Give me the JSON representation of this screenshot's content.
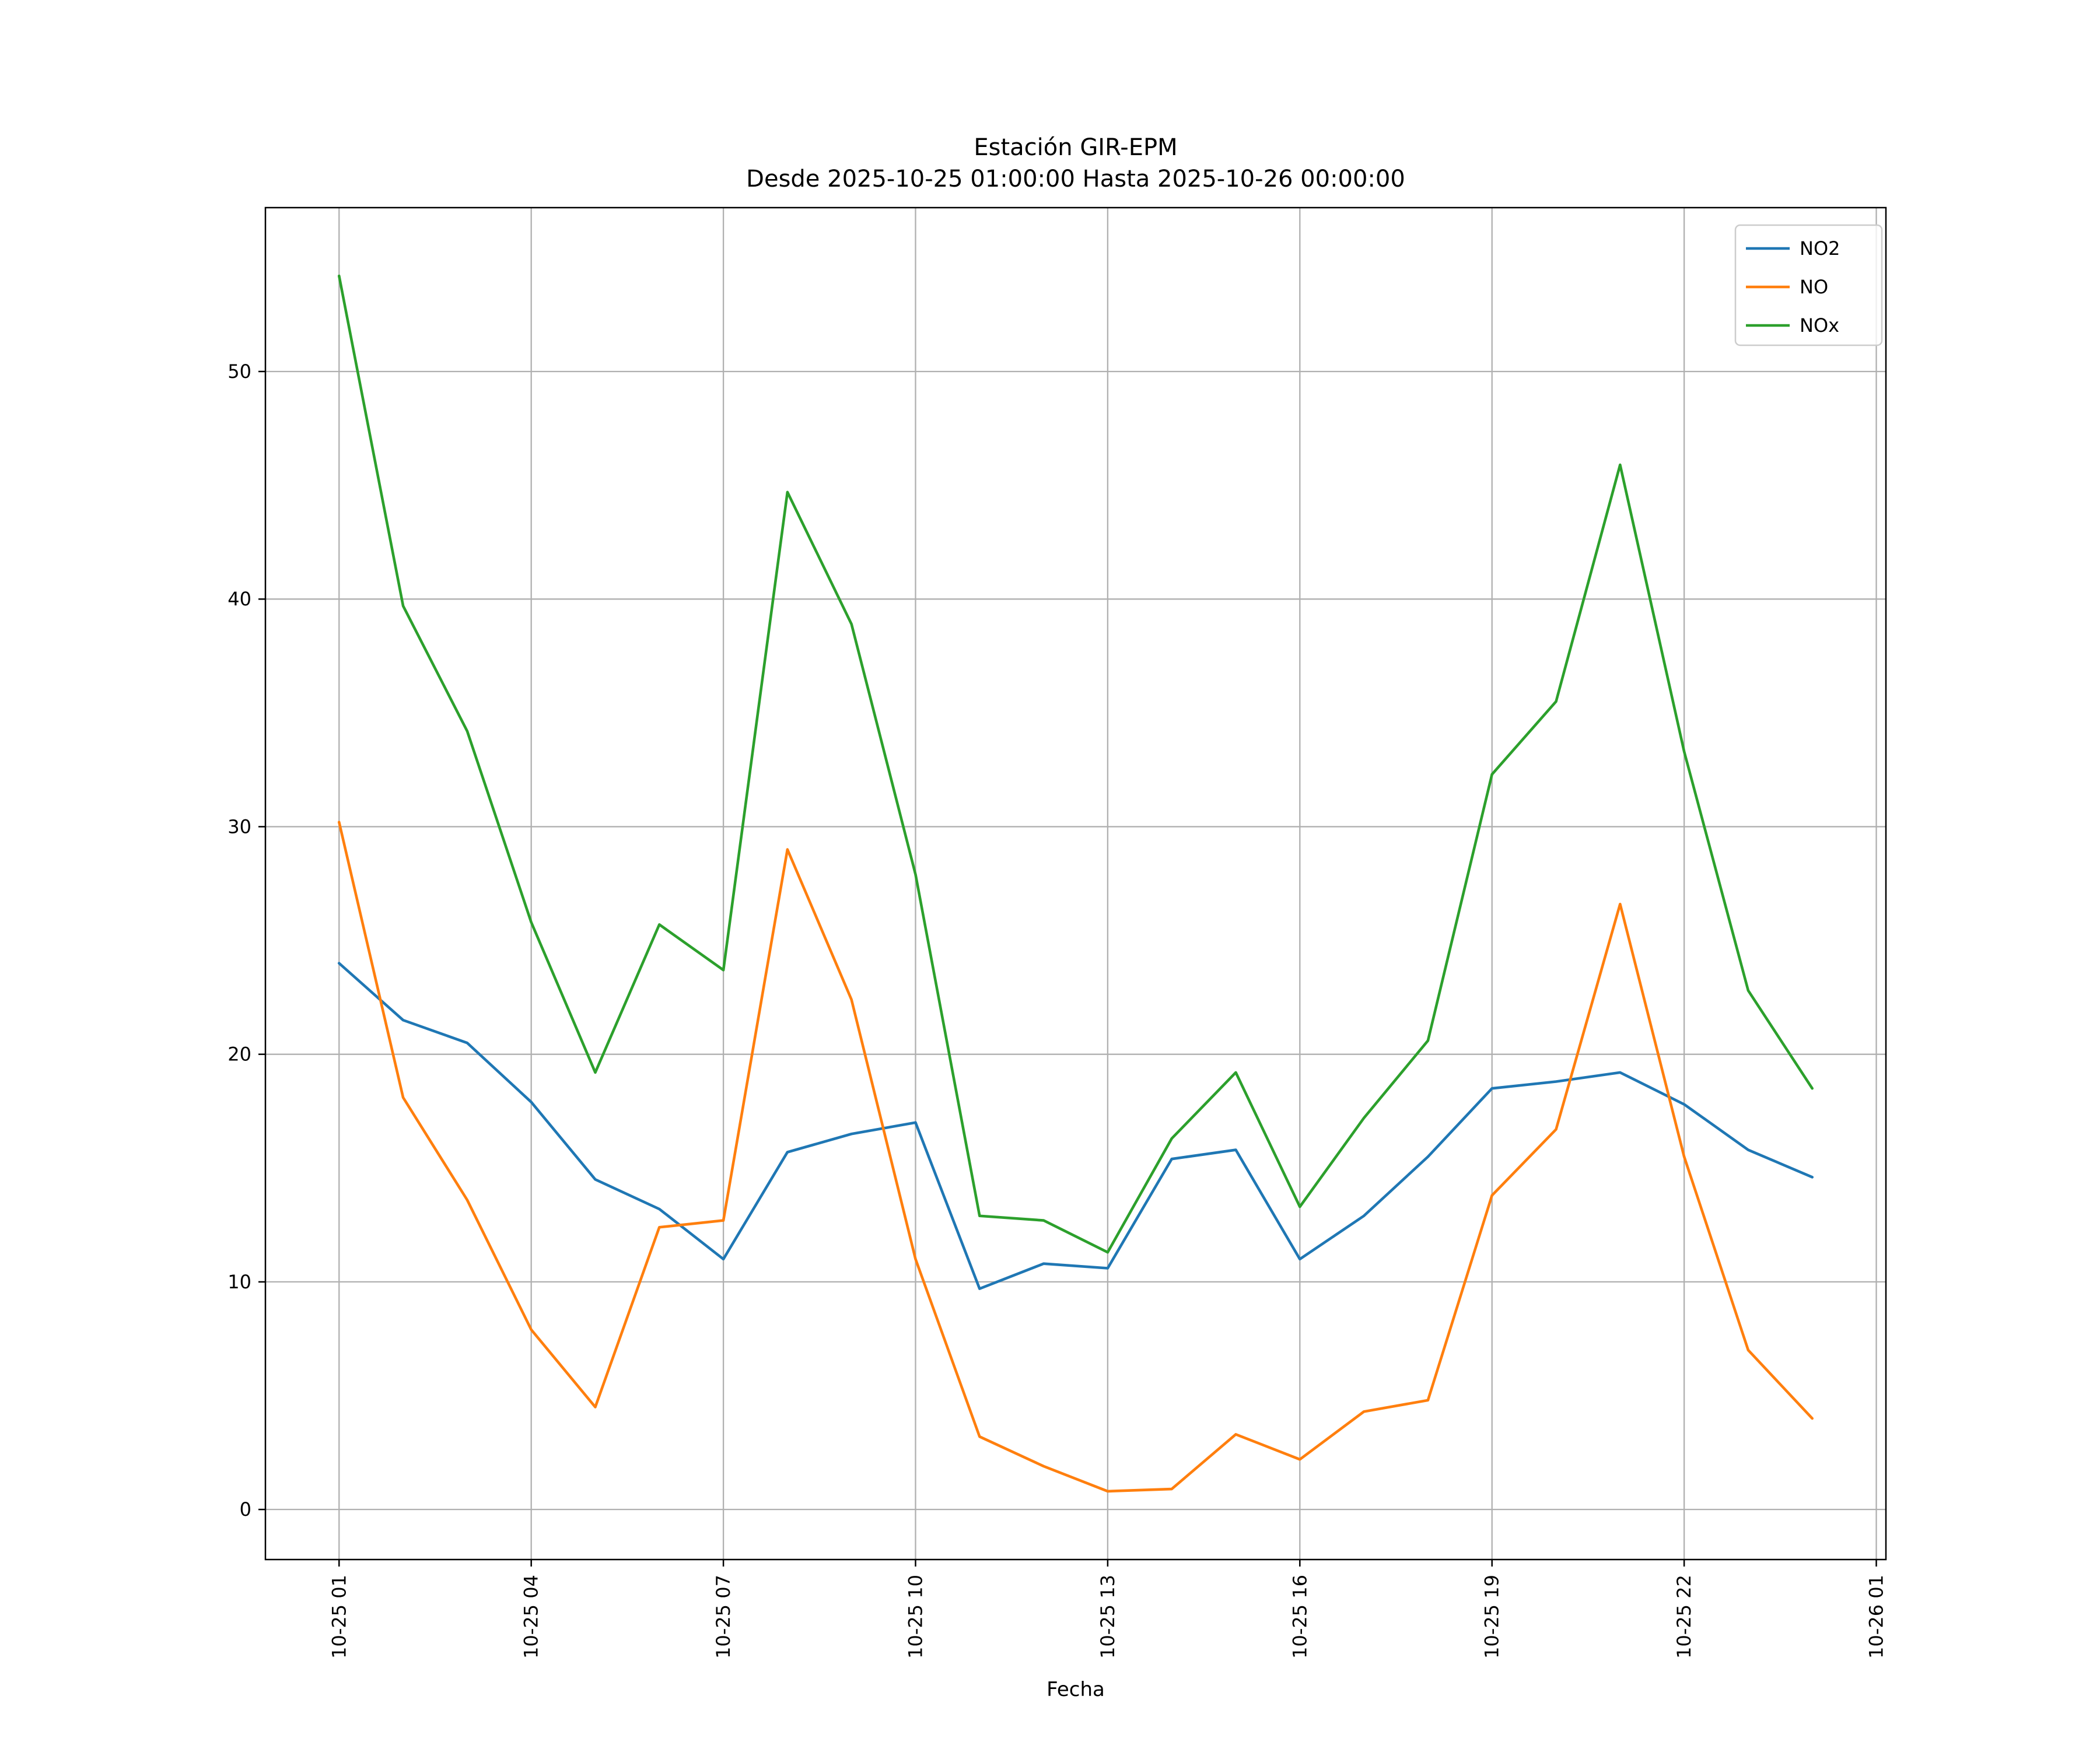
{
  "chart_data": {
    "type": "line",
    "title": "Estación GIR-EPM",
    "subtitle": "Desde 2025-10-25 01:00:00 Hasta 2025-10-26 00:00:00",
    "xlabel": "Fecha",
    "ylabel": "",
    "grid": true,
    "legend_position": "upper right",
    "background_color": "#ffffff",
    "grid_color": "#b0b0b0",
    "xlim": [
      -0.15,
      25.15
    ],
    "ylim": [
      -2.2,
      57.2
    ],
    "y_ticks": [
      0,
      10,
      20,
      30,
      40,
      50
    ],
    "x_tick_hours": [
      1,
      4,
      7,
      10,
      13,
      16,
      19,
      22,
      25
    ],
    "x_tick_labels": [
      "10-25 01",
      "10-25 04",
      "10-25 07",
      "10-25 10",
      "10-25 13",
      "10-25 16",
      "10-25 19",
      "10-25 22",
      "10-26 01"
    ],
    "x_hours": [
      1,
      2,
      3,
      4,
      5,
      6,
      7,
      8,
      9,
      10,
      11,
      12,
      13,
      14,
      15,
      16,
      17,
      18,
      19,
      20,
      21,
      22,
      23,
      24
    ],
    "series": [
      {
        "name": "NO2",
        "color": "#1f77b4",
        "values": [
          24.0,
          21.5,
          20.5,
          17.9,
          14.5,
          13.2,
          11.0,
          15.7,
          16.5,
          17.0,
          9.7,
          10.8,
          10.6,
          15.4,
          15.8,
          11.0,
          12.9,
          15.5,
          18.5,
          18.8,
          19.2,
          17.8,
          15.8,
          14.6
        ]
      },
      {
        "name": "NO",
        "color": "#ff7f0e",
        "values": [
          30.2,
          18.1,
          13.6,
          7.9,
          4.5,
          12.4,
          12.7,
          29.0,
          22.4,
          11.0,
          3.2,
          1.9,
          0.8,
          0.9,
          3.3,
          2.2,
          4.3,
          4.8,
          13.8,
          16.7,
          26.6,
          15.5,
          7.0,
          4.0
        ]
      },
      {
        "name": "NOx",
        "color": "#2ca02c",
        "values": [
          54.2,
          39.7,
          34.2,
          25.8,
          19.2,
          25.7,
          23.7,
          44.7,
          38.9,
          27.9,
          12.9,
          12.7,
          11.3,
          16.3,
          19.2,
          13.3,
          17.2,
          20.6,
          32.3,
          35.5,
          45.9,
          33.3,
          22.8,
          18.5
        ]
      }
    ]
  }
}
